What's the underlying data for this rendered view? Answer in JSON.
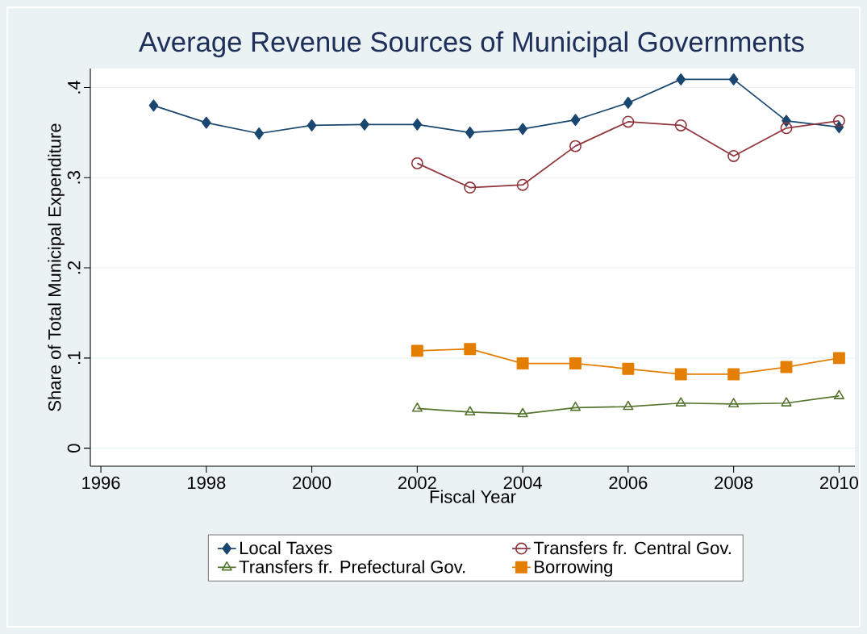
{
  "chart_data": {
    "type": "line",
    "title": "Average Revenue Sources of Municipal Governments",
    "xlabel": "Fiscal Year",
    "ylabel": "Share of Total Municipal Expenditure",
    "x": [
      1997,
      1998,
      1999,
      2000,
      2001,
      2002,
      2003,
      2004,
      2005,
      2006,
      2007,
      2008,
      2009,
      2010
    ],
    "series": [
      {
        "name": "Local Taxes",
        "color": "#1a476f",
        "marker": "diamond",
        "values": [
          0.38,
          0.361,
          0.349,
          0.358,
          0.359,
          0.359,
          0.35,
          0.354,
          0.364,
          0.383,
          0.409,
          0.409,
          0.363,
          0.356
        ]
      },
      {
        "name": "Transfers fr. Central Gov.",
        "color": "#90353b",
        "marker": "circle",
        "values": [
          null,
          null,
          null,
          null,
          null,
          0.316,
          0.289,
          0.292,
          0.335,
          0.362,
          0.358,
          0.324,
          0.355,
          0.363
        ]
      },
      {
        "name": "Transfers fr. Prefectural Gov.",
        "color": "#55752f",
        "marker": "triangle",
        "values": [
          null,
          null,
          null,
          null,
          null,
          0.044,
          0.04,
          0.038,
          0.045,
          0.046,
          0.05,
          0.049,
          0.05,
          0.058
        ]
      },
      {
        "name": "Borrowing",
        "color": "#e37e00",
        "marker": "square",
        "values": [
          null,
          null,
          null,
          null,
          null,
          0.108,
          0.11,
          0.094,
          0.094,
          0.088,
          0.082,
          0.082,
          0.09,
          0.1
        ]
      }
    ],
    "xlim": [
      1995.8,
      2010.3
    ],
    "ylim": [
      -0.02,
      0.421
    ],
    "xticks": [
      1996,
      1998,
      2000,
      2002,
      2004,
      2006,
      2008,
      2010
    ],
    "yticks": [
      {
        "value": 0,
        "label": "0"
      },
      {
        "value": 0.1,
        "label": ".1"
      },
      {
        "value": 0.2,
        "label": ".2"
      },
      {
        "value": 0.3,
        "label": ".3"
      },
      {
        "value": 0.4,
        "label": ".4"
      }
    ],
    "grid": "y",
    "legend": "bottom",
    "line_style": "solid"
  }
}
